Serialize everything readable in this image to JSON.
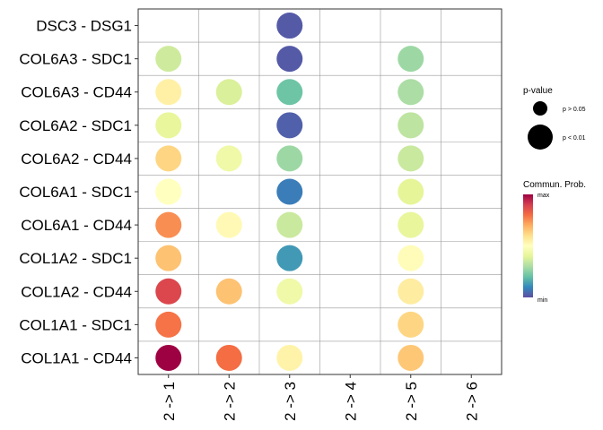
{
  "chart_data": {
    "type": "scatter",
    "subtype": "dot-plot",
    "title": "",
    "xlabel": "",
    "ylabel": "",
    "grid": true,
    "legend_placement": "right",
    "x_categories": [
      "2 -> 1",
      "2 -> 2",
      "2 -> 3",
      "2 -> 4",
      "2 -> 5",
      "2 -> 6"
    ],
    "y_categories": [
      "DSC3 - DSG1",
      "COL6A3 - SDC1",
      "COL6A3 - CD44",
      "COL6A2 - SDC1",
      "COL6A2 - CD44",
      "COL6A1 - SDC1",
      "COL6A1 - CD44",
      "COL1A2 - SDC1",
      "COL1A2 - CD44",
      "COL1A1 - SDC1",
      "COL1A1 - CD44"
    ],
    "points": [
      {
        "x": "2 -> 3",
        "y": "DSC3 - DSG1",
        "prob": 0.02,
        "pval": "< 0.01"
      },
      {
        "x": "2 -> 1",
        "y": "COL6A3 - SDC1",
        "prob": 0.36,
        "pval": "< 0.01"
      },
      {
        "x": "2 -> 3",
        "y": "COL6A3 - SDC1",
        "prob": 0.02,
        "pval": "< 0.01"
      },
      {
        "x": "2 -> 5",
        "y": "COL6A3 - SDC1",
        "prob": 0.28,
        "pval": "< 0.01"
      },
      {
        "x": "2 -> 1",
        "y": "COL6A3 - CD44",
        "prob": 0.55,
        "pval": "< 0.01"
      },
      {
        "x": "2 -> 2",
        "y": "COL6A3 - CD44",
        "prob": 0.38,
        "pval": "< 0.01"
      },
      {
        "x": "2 -> 3",
        "y": "COL6A3 - CD44",
        "prob": 0.21,
        "pval": "< 0.01"
      },
      {
        "x": "2 -> 5",
        "y": "COL6A3 - CD44",
        "prob": 0.3,
        "pval": "< 0.01"
      },
      {
        "x": "2 -> 1",
        "y": "COL6A2 - SDC1",
        "prob": 0.41,
        "pval": "< 0.01"
      },
      {
        "x": "2 -> 3",
        "y": "COL6A2 - SDC1",
        "prob": 0.03,
        "pval": "< 0.01"
      },
      {
        "x": "2 -> 5",
        "y": "COL6A2 - SDC1",
        "prob": 0.33,
        "pval": "< 0.01"
      },
      {
        "x": "2 -> 1",
        "y": "COL6A2 - CD44",
        "prob": 0.62,
        "pval": "< 0.01"
      },
      {
        "x": "2 -> 2",
        "y": "COL6A2 - CD44",
        "prob": 0.44,
        "pval": "< 0.01"
      },
      {
        "x": "2 -> 3",
        "y": "COL6A2 - CD44",
        "prob": 0.28,
        "pval": "< 0.01"
      },
      {
        "x": "2 -> 5",
        "y": "COL6A2 - CD44",
        "prob": 0.35,
        "pval": "< 0.01"
      },
      {
        "x": "2 -> 1",
        "y": "COL6A1 - SDC1",
        "prob": 0.5,
        "pval": "< 0.01"
      },
      {
        "x": "2 -> 3",
        "y": "COL6A1 - SDC1",
        "prob": 0.08,
        "pval": "< 0.01"
      },
      {
        "x": "2 -> 5",
        "y": "COL6A1 - SDC1",
        "prob": 0.4,
        "pval": "< 0.01"
      },
      {
        "x": "2 -> 1",
        "y": "COL6A1 - CD44",
        "prob": 0.75,
        "pval": "< 0.01"
      },
      {
        "x": "2 -> 2",
        "y": "COL6A1 - CD44",
        "prob": 0.52,
        "pval": "< 0.01"
      },
      {
        "x": "2 -> 3",
        "y": "COL6A1 - CD44",
        "prob": 0.35,
        "pval": "< 0.01"
      },
      {
        "x": "2 -> 5",
        "y": "COL6A1 - CD44",
        "prob": 0.41,
        "pval": "< 0.01"
      },
      {
        "x": "2 -> 1",
        "y": "COL1A2 - SDC1",
        "prob": 0.66,
        "pval": "< 0.01"
      },
      {
        "x": "2 -> 3",
        "y": "COL1A2 - SDC1",
        "prob": 0.13,
        "pval": "< 0.01"
      },
      {
        "x": "2 -> 5",
        "y": "COL1A2 - SDC1",
        "prob": 0.51,
        "pval": "< 0.01"
      },
      {
        "x": "2 -> 1",
        "y": "COL1A2 - CD44",
        "prob": 0.88,
        "pval": "< 0.01"
      },
      {
        "x": "2 -> 2",
        "y": "COL1A2 - CD44",
        "prob": 0.66,
        "pval": "< 0.01"
      },
      {
        "x": "2 -> 3",
        "y": "COL1A2 - CD44",
        "prob": 0.44,
        "pval": "< 0.01"
      },
      {
        "x": "2 -> 5",
        "y": "COL1A2 - CD44",
        "prob": 0.56,
        "pval": "< 0.01"
      },
      {
        "x": "2 -> 1",
        "y": "COL1A1 - SDC1",
        "prob": 0.79,
        "pval": "< 0.01"
      },
      {
        "x": "2 -> 5",
        "y": "COL1A1 - SDC1",
        "prob": 0.62,
        "pval": "< 0.01"
      },
      {
        "x": "2 -> 1",
        "y": "COL1A1 - CD44",
        "prob": 1.0,
        "pval": "< 0.01"
      },
      {
        "x": "2 -> 2",
        "y": "COL1A1 - CD44",
        "prob": 0.8,
        "pval": "< 0.01"
      },
      {
        "x": "2 -> 3",
        "y": "COL1A1 - CD44",
        "prob": 0.54,
        "pval": "< 0.01"
      },
      {
        "x": "2 -> 5",
        "y": "COL1A1 - CD44",
        "prob": 0.65,
        "pval": "< 0.01"
      }
    ],
    "size_legend": {
      "title": "p-value",
      "entries": [
        {
          "label": "p > 0.05",
          "size": "small"
        },
        {
          "label": "p < 0.01",
          "size": "large"
        }
      ]
    },
    "color_legend": {
      "title": "Commun. Prob.",
      "max_label": "max",
      "min_label": "min",
      "palette": [
        "#5E4FA2",
        "#3288BD",
        "#66C2A5",
        "#ABDDA4",
        "#E6F598",
        "#FFFFBF",
        "#FEE08B",
        "#FDAE61",
        "#F46D43",
        "#D53E4F",
        "#9E0142"
      ]
    }
  }
}
